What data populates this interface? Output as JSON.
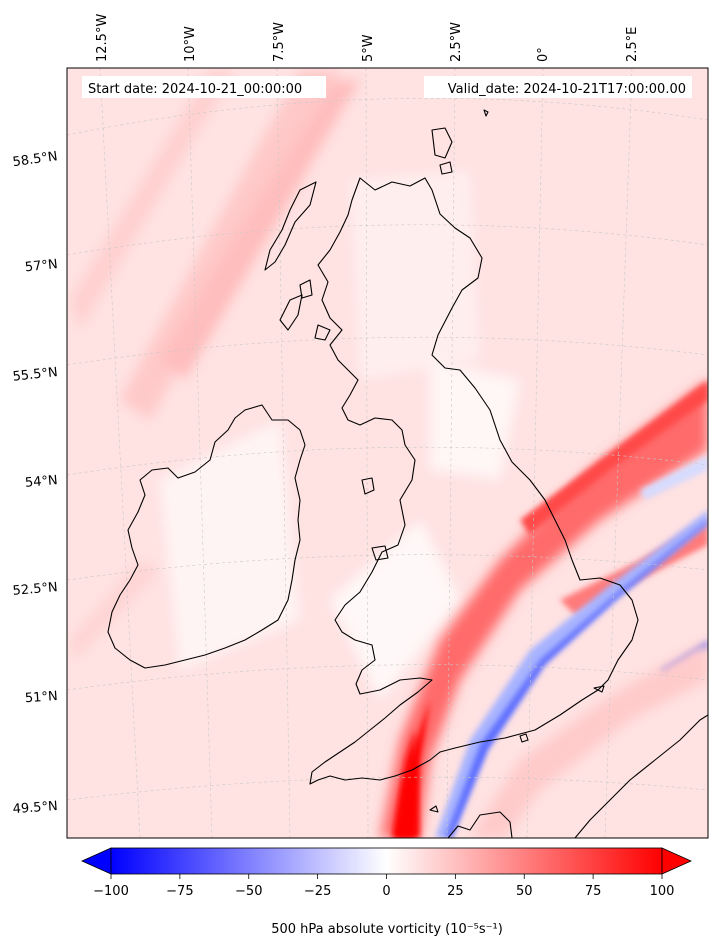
{
  "header": {
    "start_date": "Start date: 2024-10-21_00:00:00",
    "valid_date": "Valid_date: 2024-10-21T17:00:00.00"
  },
  "axes": {
    "lon_labels": [
      "12.5°W",
      "10°W",
      "7.5°W",
      "5°W",
      "2.5°W",
      "0°",
      "2.5°E"
    ],
    "lat_labels": [
      "58.5°N",
      "57°N",
      "55.5°N",
      "54°N",
      "52.5°N",
      "51°N",
      "49.5°N"
    ]
  },
  "colorbar": {
    "ticks": [
      "−100",
      "−75",
      "−50",
      "−25",
      "0",
      "25",
      "50",
      "75",
      "100"
    ],
    "label": "500 hPa absolute vorticity (10⁻⁵s⁻¹)",
    "min_color": "#0000ff",
    "mid_color": "#ffffff",
    "max_color": "#ff0000"
  },
  "map": {
    "field": "500 hPa absolute vorticity",
    "colormap": "bwr",
    "range": [
      -100,
      100
    ],
    "coastline_color": "#000000",
    "gridlines": "dashed grey"
  }
}
